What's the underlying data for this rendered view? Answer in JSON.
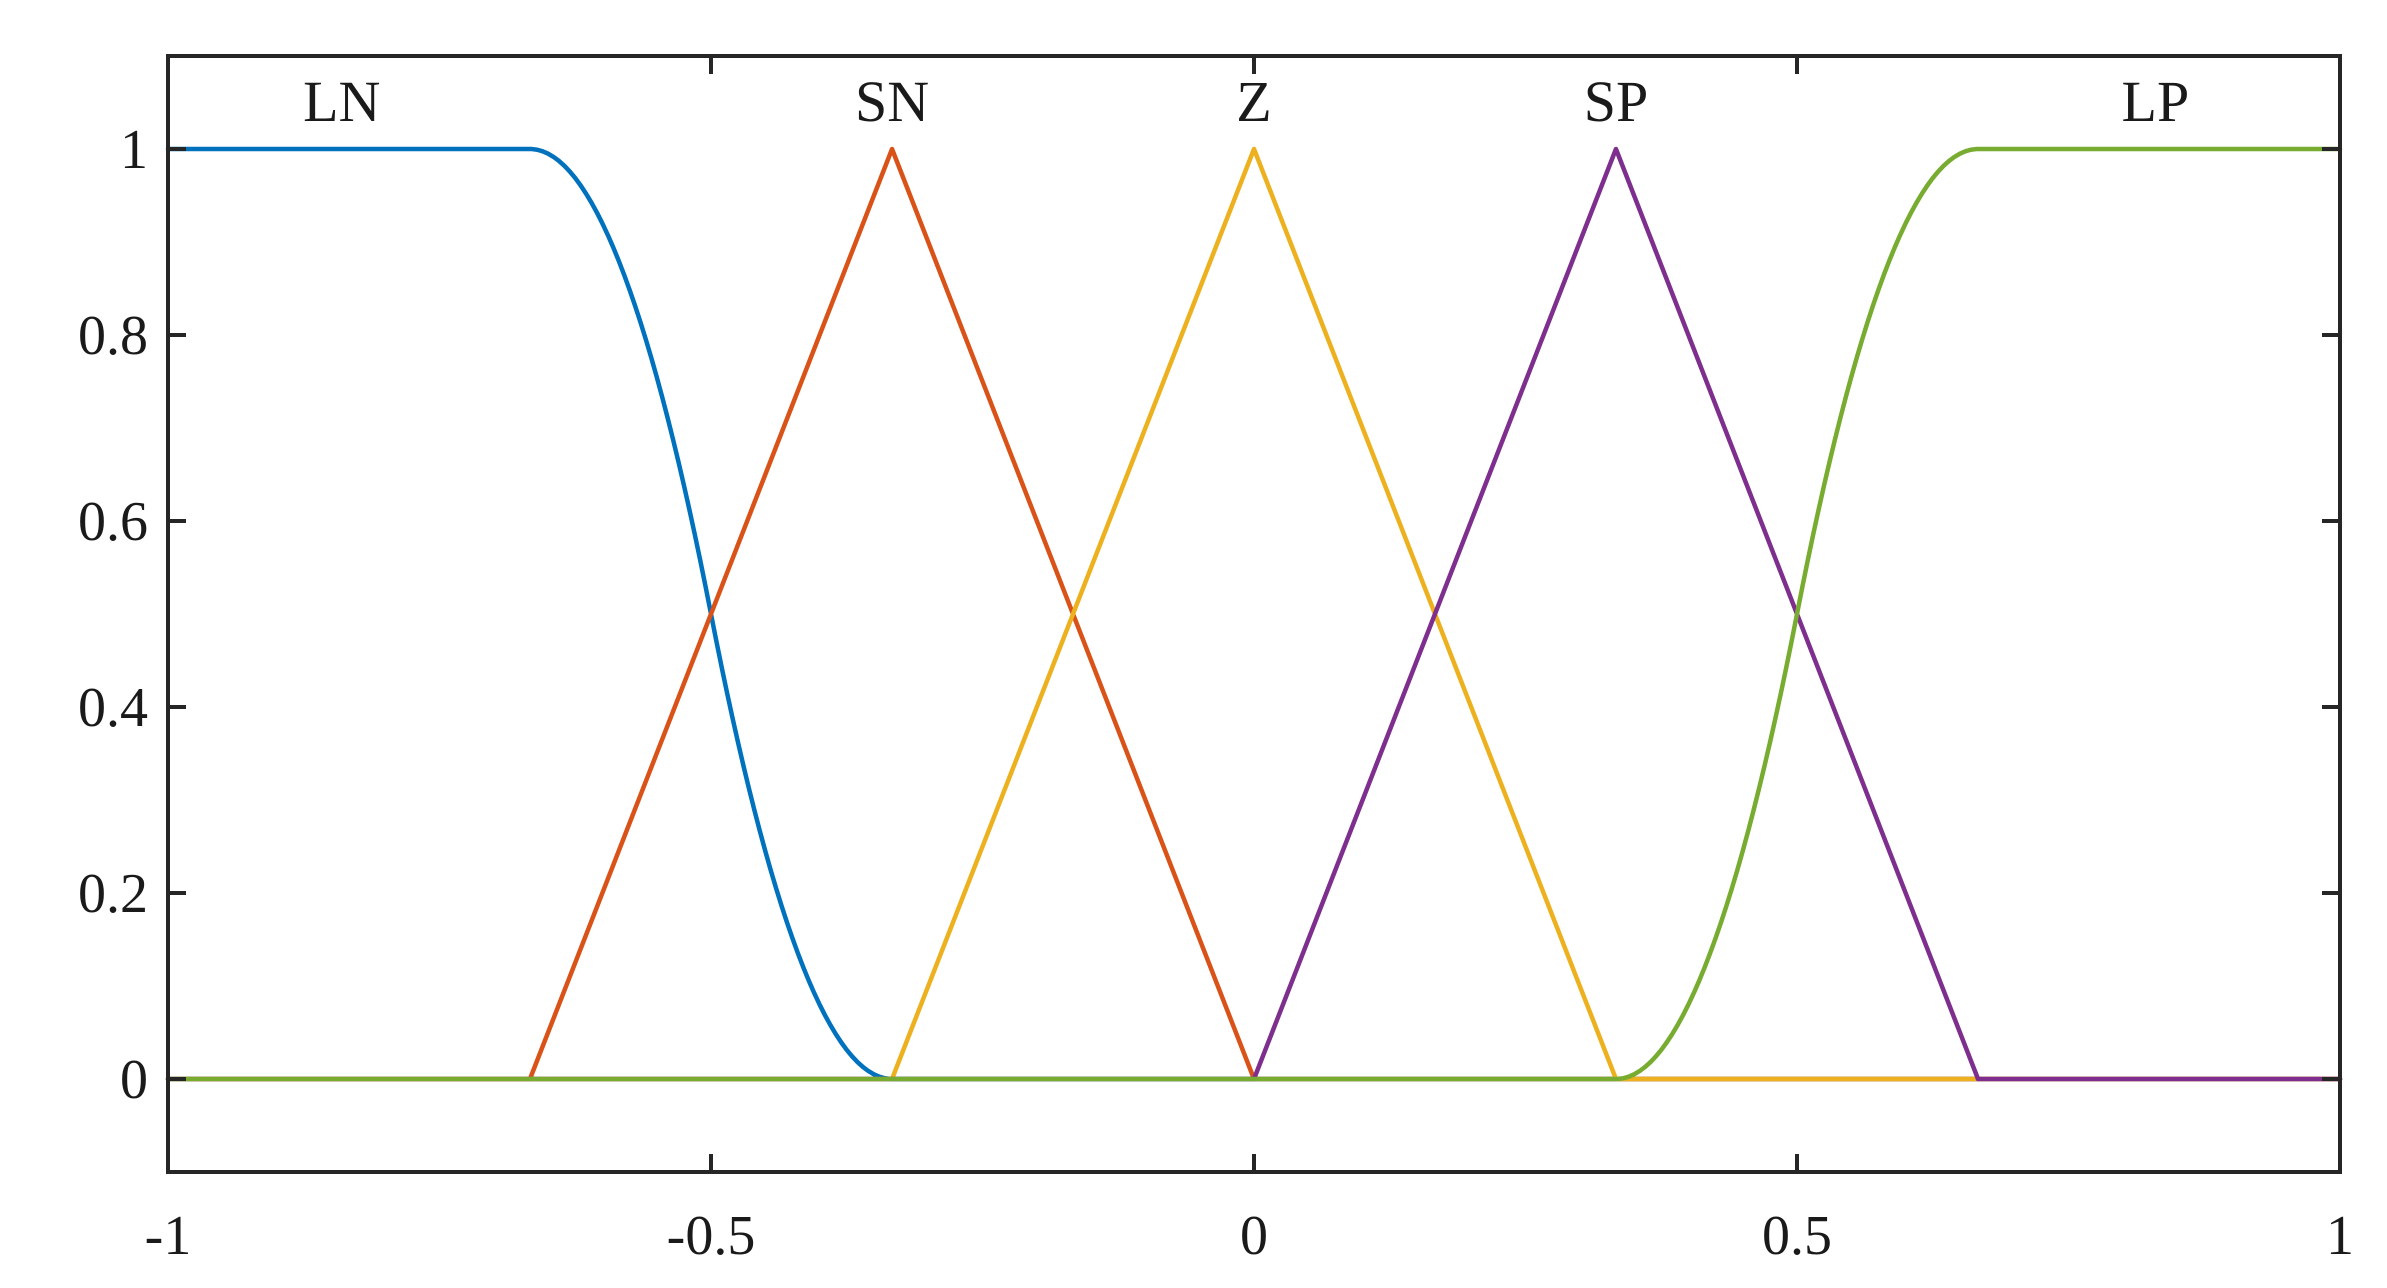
{
  "chart_data": {
    "type": "line",
    "title": "",
    "xlabel": "",
    "ylabel": "",
    "xlim": [
      -1,
      1
    ],
    "ylim": [
      -0.1,
      1.1
    ],
    "grid": false,
    "x_ticks": [
      -1,
      -0.5,
      0,
      0.5,
      1
    ],
    "x_tick_labels": [
      "-1",
      "-0.5",
      "0",
      "0.5",
      "1"
    ],
    "y_ticks": [
      0,
      0.2,
      0.4,
      0.6,
      0.8,
      1
    ],
    "y_tick_labels": [
      "0",
      "0.2",
      "0.4",
      "0.6",
      "0.8",
      "1"
    ],
    "series": [
      {
        "name": "LN",
        "color": "#0072BD",
        "shape": "z-shaped",
        "x": [
          -1,
          -0.6667,
          -0.3333,
          1
        ],
        "y": [
          1,
          1,
          0,
          0
        ],
        "label_x": -0.84,
        "label_y": 1.03
      },
      {
        "name": "SN",
        "color": "#D95319",
        "shape": "triangular",
        "x": [
          -1,
          -0.6667,
          -0.3333,
          0,
          1
        ],
        "y": [
          0,
          0,
          1,
          0,
          0
        ],
        "label_x": -0.3333,
        "label_y": 1.03
      },
      {
        "name": "Z",
        "color": "#EDB120",
        "shape": "triangular",
        "x": [
          -1,
          -0.3333,
          0,
          0.3333,
          1
        ],
        "y": [
          0,
          0,
          1,
          0,
          0
        ],
        "label_x": 0,
        "label_y": 1.03
      },
      {
        "name": "SP",
        "color": "#7E2F8E",
        "shape": "triangular",
        "x": [
          -1,
          0,
          0.3333,
          0.6667,
          1
        ],
        "y": [
          0,
          0,
          1,
          0,
          0
        ],
        "label_x": 0.3333,
        "label_y": 1.03
      },
      {
        "name": "LP",
        "color": "#77AC30",
        "shape": "s-shaped",
        "x": [
          -1,
          0.3333,
          0.6667,
          1
        ],
        "y": [
          0,
          0,
          1,
          1
        ],
        "label_x": 0.83,
        "label_y": 1.03
      }
    ]
  }
}
